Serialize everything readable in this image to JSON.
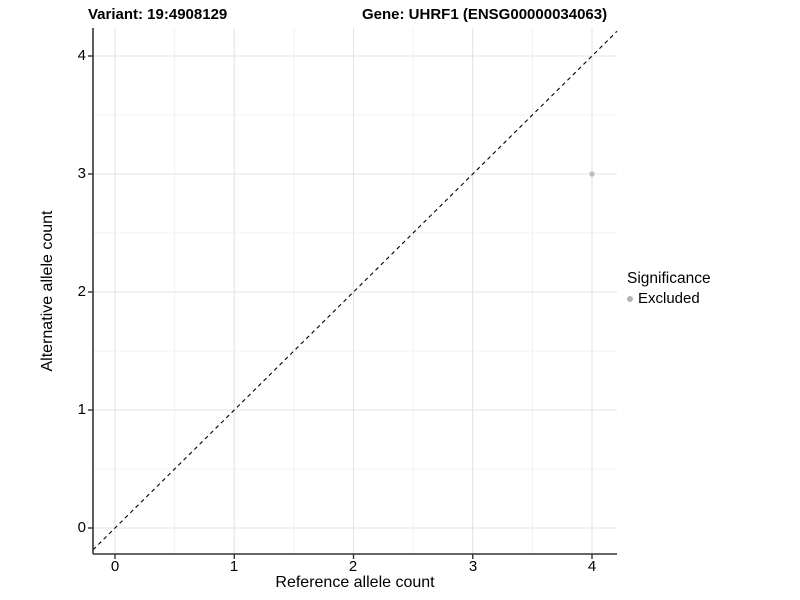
{
  "header": {
    "variant_title": "Variant: 19:4908129",
    "gene_title": "Gene: UHRF1 (ENSG00000034063)"
  },
  "chart_data": {
    "type": "scatter",
    "title_left": "Variant: 19:4908129",
    "title_right": "Gene: UHRF1 (ENSG00000034063)",
    "xlabel": "Reference allele count",
    "ylabel": "Alternative allele count",
    "xlim": [
      -0.18,
      4.21
    ],
    "ylim": [
      -0.22,
      4.24
    ],
    "x_ticks": [
      0,
      1,
      2,
      3,
      4
    ],
    "y_ticks": [
      0,
      1,
      2,
      3,
      4
    ],
    "minor_grid_positions": [
      0.5,
      1.5,
      2.5,
      3.5
    ],
    "grid": true,
    "legend_position": "right",
    "reference_line": {
      "kind": "identity y=x",
      "style": "dashed",
      "color": "#000000"
    },
    "series": [
      {
        "name": "Excluded",
        "color": "#bdbdbd",
        "points": [
          {
            "x": 4,
            "y": 3
          }
        ]
      }
    ],
    "legend": {
      "title": "Significance",
      "items": [
        {
          "label": "Excluded",
          "color": "#b3b3b3"
        }
      ]
    }
  },
  "colors": {
    "background": "#ffffff",
    "grid_major": "#e3e3e3",
    "grid_minor": "#f0f0f0",
    "axis_line": "#333333",
    "tick_mark": "#333333",
    "point": "#bdbdbd",
    "dashed_line": "#000000",
    "text": "#000000"
  }
}
